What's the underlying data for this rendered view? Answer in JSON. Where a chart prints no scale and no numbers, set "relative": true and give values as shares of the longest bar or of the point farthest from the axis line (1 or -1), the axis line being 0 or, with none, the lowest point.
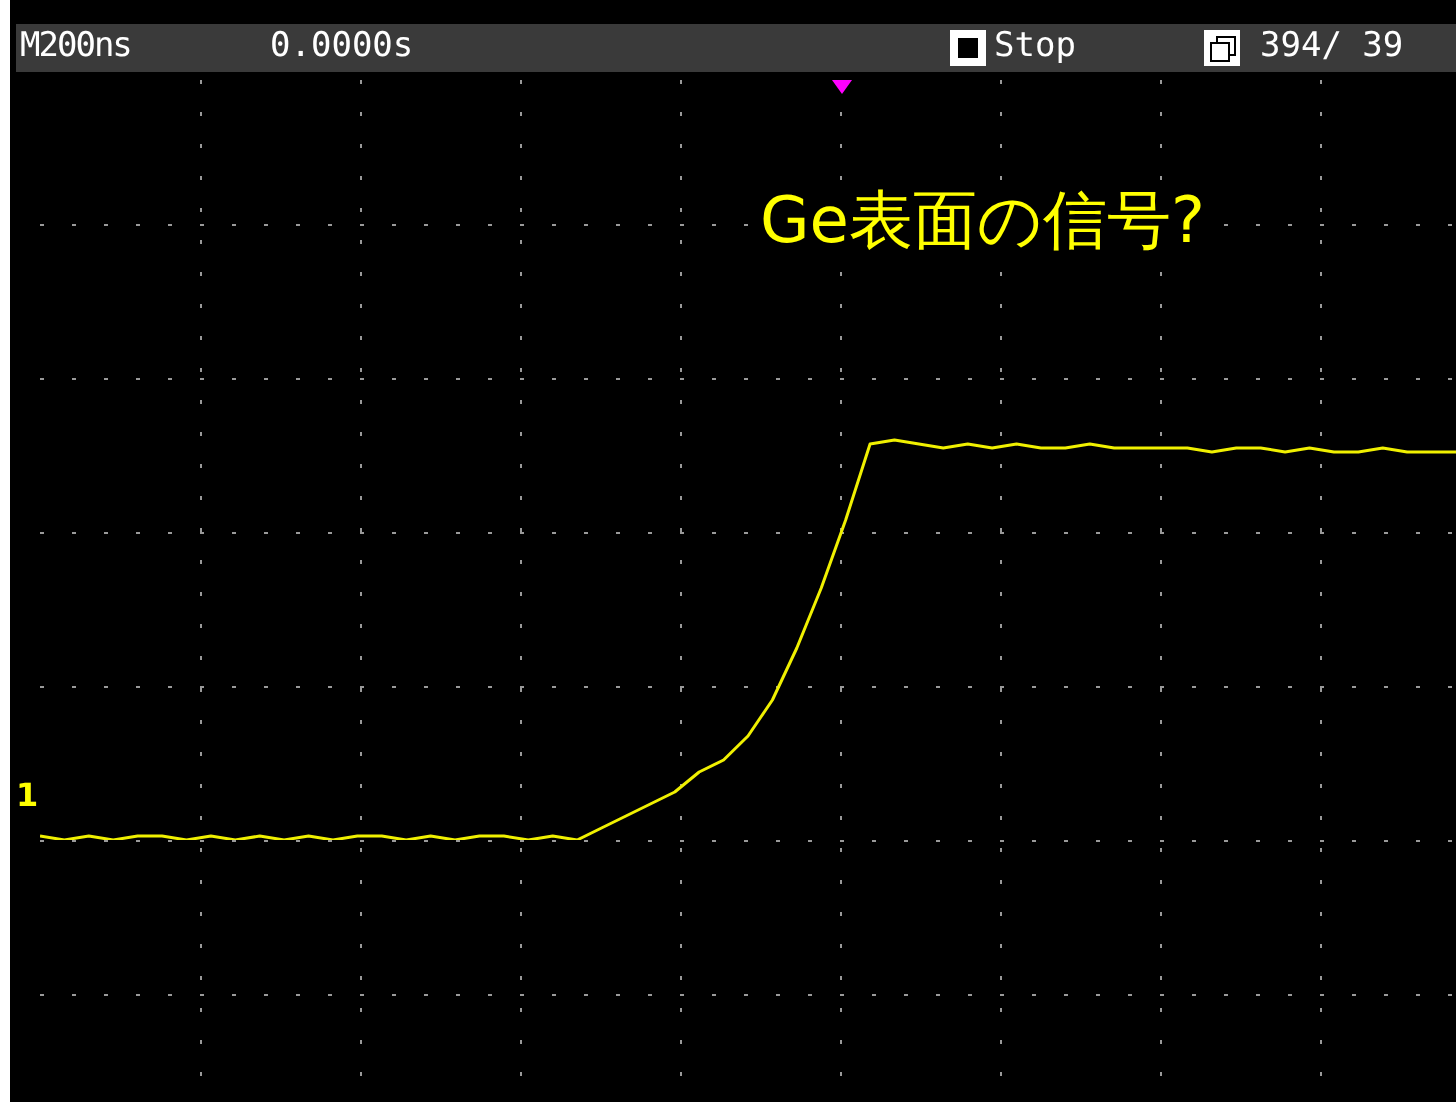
{
  "chart_data": {
    "type": "line",
    "relative": true,
    "grid": true,
    "legend": false,
    "marker": "none",
    "line_style": "solid",
    "categories": [
      null,
      null,
      null,
      null,
      null,
      null,
      null,
      null,
      null,
      null,
      null,
      null,
      null,
      null,
      null,
      null,
      null,
      null,
      null,
      null,
      null,
      null,
      null,
      null,
      null,
      null,
      null,
      null,
      null,
      null,
      null,
      null,
      null,
      null,
      null,
      null,
      null,
      null,
      null,
      null,
      null,
      null,
      null,
      null,
      null,
      null,
      null,
      null,
      null,
      null,
      null,
      null,
      null,
      null,
      null,
      null,
      null,
      null,
      null
    ],
    "series": [
      {
        "color": "#f0f000",
        "values": [
          0.01,
          0.0,
          0.01,
          0.0,
          0.01,
          0.01,
          0.0,
          0.01,
          0.0,
          0.01,
          0.0,
          0.01,
          0.0,
          0.01,
          0.01,
          0.0,
          0.01,
          0.0,
          0.01,
          0.01,
          0.0,
          0.01,
          0.0,
          0.03,
          0.06,
          0.09,
          0.12,
          0.17,
          0.2,
          0.26,
          0.35,
          0.48,
          0.63,
          0.8,
          0.99,
          1.0,
          0.99,
          0.98,
          0.99,
          0.98,
          0.99,
          0.98,
          0.98,
          0.99,
          0.98,
          0.98,
          0.98,
          0.98,
          0.97,
          0.98,
          0.98,
          0.97,
          0.98,
          0.97,
          0.97,
          0.98,
          0.97,
          0.97,
          0.97
        ]
      }
    ],
    "annotations": [
      "M200ns",
      "0.0000s",
      "Stop",
      "394/ 39",
      "Ge表面の信号?",
      "1"
    ]
  }
}
